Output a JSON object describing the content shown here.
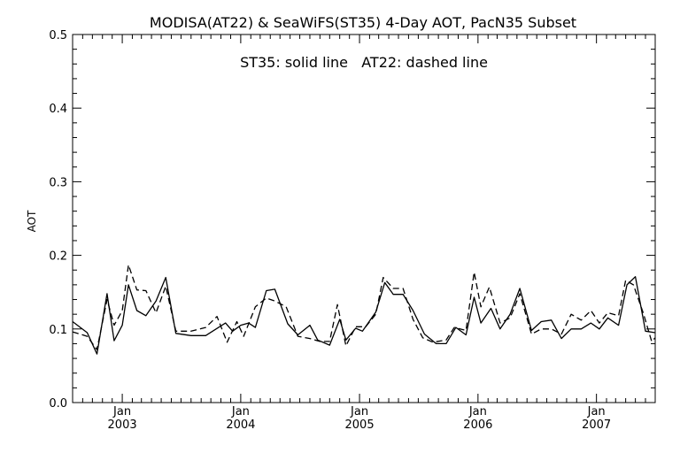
{
  "chart_data": {
    "type": "line",
    "title": "MODISA(AT22) & SeaWiFS(ST35) 4-Day AOT, PacN35 Subset",
    "annotation": "ST35: solid line   AT22: dashed line",
    "xlabel": "",
    "ylabel": "AOT",
    "xlim": [
      "2002-08-01",
      "2007-07-01"
    ],
    "ylim": [
      0.0,
      0.5
    ],
    "yticks": [
      "0.0",
      "0.1",
      "0.2",
      "0.3",
      "0.4",
      "0.5"
    ],
    "xticks": [
      {
        "date": "2003-01-01",
        "month": "Jan",
        "year": "2003"
      },
      {
        "date": "2004-01-01",
        "month": "Jan",
        "year": "2004"
      },
      {
        "date": "2005-01-01",
        "month": "Jan",
        "year": "2005"
      },
      {
        "date": "2006-01-01",
        "month": "Jan",
        "year": "2006"
      },
      {
        "date": "2007-01-01",
        "month": "Jan",
        "year": "2007"
      }
    ],
    "grid": false,
    "series": [
      {
        "name": "ST35",
        "style": "solid",
        "color": "#000000",
        "points": [
          [
            "2002-08-01",
            0.11
          ],
          [
            "2002-09-15",
            0.095
          ],
          [
            "2002-10-15",
            0.066
          ],
          [
            "2002-11-15",
            0.148
          ],
          [
            "2002-12-07",
            0.084
          ],
          [
            "2003-01-01",
            0.105
          ],
          [
            "2003-01-20",
            0.16
          ],
          [
            "2003-02-15",
            0.125
          ],
          [
            "2003-03-15",
            0.118
          ],
          [
            "2003-04-15",
            0.138
          ],
          [
            "2003-05-15",
            0.17
          ],
          [
            "2003-06-15",
            0.094
          ],
          [
            "2003-08-01",
            0.091
          ],
          [
            "2003-09-15",
            0.091
          ],
          [
            "2003-11-15",
            0.108
          ],
          [
            "2003-12-07",
            0.097
          ],
          [
            "2004-01-01",
            0.105
          ],
          [
            "2004-01-25",
            0.108
          ],
          [
            "2004-02-15",
            0.102
          ],
          [
            "2004-03-20",
            0.152
          ],
          [
            "2004-04-15",
            0.154
          ],
          [
            "2004-05-25",
            0.107
          ],
          [
            "2004-06-25",
            0.092
          ],
          [
            "2004-08-01",
            0.105
          ],
          [
            "2004-08-25",
            0.085
          ],
          [
            "2004-10-01",
            0.078
          ],
          [
            "2004-11-01",
            0.113
          ],
          [
            "2004-11-20",
            0.085
          ],
          [
            "2004-12-20",
            0.101
          ],
          [
            "2005-01-10",
            0.097
          ],
          [
            "2005-02-20",
            0.123
          ],
          [
            "2005-03-20",
            0.163
          ],
          [
            "2005-04-15",
            0.147
          ],
          [
            "2005-05-15",
            0.147
          ],
          [
            "2005-06-15",
            0.125
          ],
          [
            "2005-07-20",
            0.093
          ],
          [
            "2005-08-25",
            0.08
          ],
          [
            "2005-09-25",
            0.08
          ],
          [
            "2005-10-25",
            0.102
          ],
          [
            "2005-11-25",
            0.092
          ],
          [
            "2005-12-20",
            0.143
          ],
          [
            "2006-01-10",
            0.108
          ],
          [
            "2006-02-10",
            0.128
          ],
          [
            "2006-03-10",
            0.1
          ],
          [
            "2006-04-10",
            0.12
          ],
          [
            "2006-05-10",
            0.155
          ],
          [
            "2006-06-15",
            0.098
          ],
          [
            "2006-07-15",
            0.11
          ],
          [
            "2006-08-15",
            0.112
          ],
          [
            "2006-09-15",
            0.087
          ],
          [
            "2006-10-15",
            0.1
          ],
          [
            "2006-11-15",
            0.1
          ],
          [
            "2006-12-15",
            0.108
          ],
          [
            "2007-01-10",
            0.1
          ],
          [
            "2007-02-05",
            0.115
          ],
          [
            "2007-03-10",
            0.105
          ],
          [
            "2007-04-05",
            0.16
          ],
          [
            "2007-05-01",
            0.171
          ],
          [
            "2007-06-01",
            0.097
          ],
          [
            "2007-07-01",
            0.095
          ]
        ]
      },
      {
        "name": "AT22",
        "style": "dashed",
        "color": "#000000",
        "points": [
          [
            "2002-08-01",
            0.096
          ],
          [
            "2002-09-15",
            0.09
          ],
          [
            "2002-10-15",
            0.072
          ],
          [
            "2002-11-15",
            0.14
          ],
          [
            "2002-12-07",
            0.105
          ],
          [
            "2003-01-01",
            0.125
          ],
          [
            "2003-01-20",
            0.187
          ],
          [
            "2003-02-15",
            0.153
          ],
          [
            "2003-03-15",
            0.152
          ],
          [
            "2003-04-15",
            0.122
          ],
          [
            "2003-05-15",
            0.158
          ],
          [
            "2003-06-15",
            0.097
          ],
          [
            "2003-08-01",
            0.097
          ],
          [
            "2003-09-15",
            0.102
          ],
          [
            "2003-10-20",
            0.117
          ],
          [
            "2003-11-20",
            0.082
          ],
          [
            "2003-12-20",
            0.11
          ],
          [
            "2004-01-10",
            0.09
          ],
          [
            "2004-02-15",
            0.13
          ],
          [
            "2004-03-20",
            0.142
          ],
          [
            "2004-04-15",
            0.138
          ],
          [
            "2004-05-20",
            0.13
          ],
          [
            "2004-06-25",
            0.09
          ],
          [
            "2004-08-01",
            0.087
          ],
          [
            "2004-09-01",
            0.083
          ],
          [
            "2004-10-01",
            0.083
          ],
          [
            "2004-10-25",
            0.133
          ],
          [
            "2004-11-20",
            0.077
          ],
          [
            "2004-12-20",
            0.103
          ],
          [
            "2005-01-20",
            0.103
          ],
          [
            "2005-02-20",
            0.12
          ],
          [
            "2005-03-15",
            0.17
          ],
          [
            "2005-04-15",
            0.155
          ],
          [
            "2005-05-15",
            0.155
          ],
          [
            "2005-06-15",
            0.113
          ],
          [
            "2005-07-15",
            0.088
          ],
          [
            "2005-08-15",
            0.082
          ],
          [
            "2005-09-25",
            0.085
          ],
          [
            "2005-10-20",
            0.102
          ],
          [
            "2005-11-25",
            0.098
          ],
          [
            "2005-12-20",
            0.177
          ],
          [
            "2006-01-10",
            0.13
          ],
          [
            "2006-02-05",
            0.157
          ],
          [
            "2006-03-10",
            0.108
          ],
          [
            "2006-04-10",
            0.115
          ],
          [
            "2006-05-10",
            0.148
          ],
          [
            "2006-06-15",
            0.093
          ],
          [
            "2006-07-15",
            0.1
          ],
          [
            "2006-08-15",
            0.1
          ],
          [
            "2006-09-15",
            0.093
          ],
          [
            "2006-10-15",
            0.12
          ],
          [
            "2006-11-15",
            0.112
          ],
          [
            "2006-12-15",
            0.125
          ],
          [
            "2007-01-10",
            0.108
          ],
          [
            "2007-02-05",
            0.122
          ],
          [
            "2007-03-10",
            0.118
          ],
          [
            "2007-04-01",
            0.166
          ],
          [
            "2007-04-25",
            0.16
          ],
          [
            "2007-05-25",
            0.122
          ],
          [
            "2007-06-20",
            0.083
          ],
          [
            "2007-07-01",
            0.088
          ]
        ]
      }
    ]
  }
}
